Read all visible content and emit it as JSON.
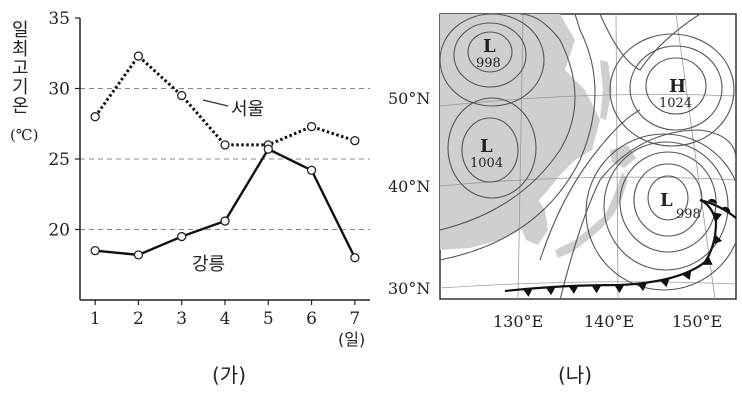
{
  "chart_data": [
    {
      "type": "line",
      "panel_label": "(가)",
      "x": [
        1,
        2,
        3,
        4,
        5,
        6,
        7
      ],
      "x_unit": "(일)",
      "ylabel": "일최고기온",
      "y_unit": "(℃)",
      "ylim": [
        15,
        35
      ],
      "yticks": [
        20,
        25,
        30,
        35
      ],
      "grid": "dashed horizontal at 20, 25, 30",
      "series": [
        {
          "name": "서울",
          "style": "dotted",
          "values": [
            28.0,
            32.3,
            29.5,
            26.0,
            26.0,
            27.3,
            26.3
          ]
        },
        {
          "name": "강릉",
          "style": "solid",
          "values": [
            18.5,
            18.2,
            19.5,
            20.6,
            25.7,
            24.2,
            18.0
          ]
        }
      ]
    },
    {
      "type": "map",
      "panel_label": "(나)",
      "lat_labels": [
        "50°N",
        "40°N",
        "30°N"
      ],
      "lon_labels": [
        "130°E",
        "140°E",
        "150°E"
      ],
      "pressure_systems": [
        {
          "type": "L",
          "value": "998"
        },
        {
          "type": "H",
          "value": "1024"
        },
        {
          "type": "L",
          "value": "1004"
        },
        {
          "type": "L",
          "value": "998"
        }
      ]
    }
  ]
}
